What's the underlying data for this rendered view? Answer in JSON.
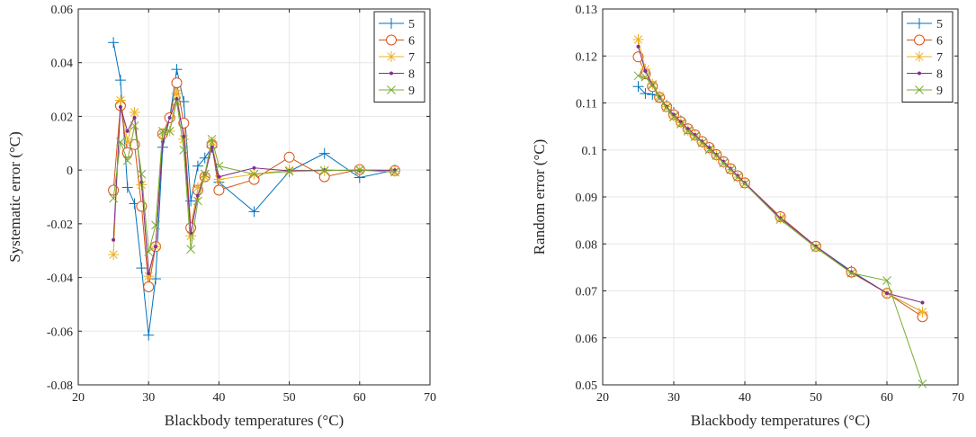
{
  "chart_data": [
    {
      "type": "line",
      "title": "",
      "xlabel": "Blackbody temperatures (°C)",
      "ylabel": "Systematic error (°C)",
      "xlim": [
        20,
        70
      ],
      "ylim": [
        -0.08,
        0.06
      ],
      "xticks": [
        "20",
        "30",
        "40",
        "50",
        "60",
        "70"
      ],
      "yticks": [
        "-0.08",
        "-0.06",
        "-0.04",
        "-0.02",
        "0",
        "0.02",
        "0.04",
        "0.06"
      ],
      "xtick_values": [
        20,
        30,
        40,
        50,
        60,
        70
      ],
      "ytick_values": [
        -0.08,
        -0.06,
        -0.04,
        -0.02,
        0,
        0.02,
        0.04,
        0.06
      ],
      "grid": true,
      "legend_position": "top-right",
      "series": [
        {
          "name": "5",
          "color": "#0072BD",
          "marker": "plus",
          "x": [
            25,
            26,
            27,
            28,
            29,
            30,
            31,
            32,
            33,
            34,
            35,
            36,
            37,
            38,
            39,
            40,
            45,
            50,
            55,
            60,
            65
          ],
          "y": [
            0.0475,
            0.0335,
            -0.0065,
            -0.0125,
            -0.0365,
            -0.0615,
            -0.0405,
            0.0085,
            0.0195,
            0.0375,
            0.0255,
            -0.0115,
            0.0015,
            0.0045,
            0.0085,
            -0.0045,
            -0.0155,
            -0.0005,
            0.0062,
            -0.0028,
            0.0
          ]
        },
        {
          "name": "6",
          "color": "#D95319",
          "marker": "circle",
          "x": [
            25,
            26,
            27,
            28,
            29,
            30,
            31,
            32,
            33,
            34,
            35,
            36,
            37,
            38,
            39,
            40,
            45,
            50,
            55,
            60,
            65
          ],
          "y": [
            -0.0075,
            0.024,
            0.0065,
            0.0095,
            -0.0135,
            -0.0435,
            -0.0285,
            0.0135,
            0.0195,
            0.0325,
            0.0175,
            -0.0215,
            -0.0075,
            -0.0025,
            0.0095,
            -0.0075,
            -0.0035,
            0.0048,
            -0.0025,
            0.0002,
            -0.0002
          ]
        },
        {
          "name": "7",
          "color": "#EDB120",
          "marker": "star",
          "x": [
            25,
            26,
            27,
            28,
            29,
            30,
            31,
            32,
            33,
            34,
            35,
            36,
            37,
            38,
            39,
            40,
            45,
            50,
            55,
            60,
            65
          ],
          "y": [
            -0.0315,
            0.026,
            0.0105,
            0.0215,
            -0.0055,
            -0.0395,
            -0.0285,
            0.0135,
            0.0145,
            0.0285,
            0.0115,
            -0.0245,
            -0.0065,
            -0.0025,
            0.0105,
            -0.0035,
            -0.0015,
            0.0,
            -0.0003,
            0.0002,
            -0.0005
          ]
        },
        {
          "name": "8",
          "color": "#7E2F8E",
          "marker": "dot",
          "x": [
            25,
            26,
            27,
            28,
            29,
            30,
            31,
            32,
            33,
            34,
            35,
            36,
            37,
            38,
            39,
            40,
            45,
            50,
            55,
            60,
            65
          ],
          "y": [
            -0.026,
            0.0235,
            0.0145,
            0.0195,
            -0.0045,
            -0.0385,
            -0.0285,
            0.0105,
            0.0195,
            0.0265,
            0.0125,
            -0.0235,
            -0.0095,
            -0.0015,
            0.0085,
            -0.0025,
            0.0008,
            -0.0003,
            0.0,
            -0.0002,
            0.0
          ]
        },
        {
          "name": "9",
          "color": "#77AC30",
          "marker": "x",
          "x": [
            25,
            26,
            27,
            28,
            29,
            30,
            31,
            32,
            33,
            34,
            35,
            36,
            37,
            38,
            39,
            40,
            45,
            50,
            55,
            60,
            65
          ],
          "y": [
            -0.0105,
            0.0105,
            0.0035,
            0.0165,
            -0.0015,
            -0.0305,
            -0.0205,
            0.0145,
            0.0145,
            0.0255,
            0.0075,
            -0.0295,
            -0.0115,
            -0.0015,
            0.0115,
            0.0015,
            -0.0015,
            -0.0005,
            -0.0002,
            0.0,
            -0.0008
          ]
        }
      ]
    },
    {
      "type": "line",
      "title": "",
      "xlabel": "Blackbody temperatures (°C)",
      "ylabel": "Random error (°C)",
      "xlim": [
        20,
        70
      ],
      "ylim": [
        0.05,
        0.13
      ],
      "xticks": [
        "20",
        "30",
        "40",
        "50",
        "60",
        "70"
      ],
      "yticks": [
        "0.05",
        "0.06",
        "0.07",
        "0.08",
        "0.09",
        "0.1",
        "0.11",
        "0.12",
        "0.13"
      ],
      "xtick_values": [
        20,
        30,
        40,
        50,
        60,
        70
      ],
      "ytick_values": [
        0.05,
        0.06,
        0.07,
        0.08,
        0.09,
        0.1,
        0.11,
        0.12,
        0.13
      ],
      "grid": true,
      "legend_position": "top-right",
      "series": [
        {
          "name": "5",
          "color": "#0072BD",
          "marker": "plus",
          "x": [
            25,
            26,
            27,
            28,
            29,
            30,
            31,
            32,
            33,
            34,
            35,
            36,
            37,
            38,
            39,
            40,
            45,
            50,
            55,
            60,
            65
          ],
          "y": [
            0.1135,
            0.112,
            0.1118,
            0.1112,
            0.1095,
            0.108,
            0.1062,
            0.1045,
            0.1032,
            0.1018,
            0.1005,
            0.099,
            0.0975,
            0.096,
            0.0945,
            0.093,
            0.0855,
            0.0795,
            0.0742,
            0.0695,
            0.0655
          ]
        },
        {
          "name": "6",
          "color": "#D95319",
          "marker": "circle",
          "x": [
            25,
            26,
            27,
            28,
            29,
            30,
            31,
            32,
            33,
            34,
            35,
            36,
            37,
            38,
            39,
            40,
            45,
            50,
            55,
            60,
            65
          ],
          "y": [
            0.1198,
            0.1162,
            0.1135,
            0.1112,
            0.1092,
            0.1075,
            0.106,
            0.1045,
            0.1032,
            0.1018,
            0.1005,
            0.099,
            0.0975,
            0.096,
            0.0945,
            0.093,
            0.0858,
            0.0795,
            0.074,
            0.0695,
            0.0645
          ]
        },
        {
          "name": "7",
          "color": "#EDB120",
          "marker": "star",
          "x": [
            25,
            26,
            27,
            28,
            29,
            30,
            31,
            32,
            33,
            34,
            35,
            36,
            37,
            38,
            39,
            40,
            45,
            50,
            55,
            60,
            65
          ],
          "y": [
            0.1235,
            0.1172,
            0.114,
            0.1115,
            0.1092,
            0.1072,
            0.1058,
            0.1042,
            0.103,
            0.1015,
            0.1002,
            0.0988,
            0.0972,
            0.0958,
            0.0942,
            0.0928,
            0.0855,
            0.0793,
            0.0738,
            0.0695,
            0.0655
          ]
        },
        {
          "name": "8",
          "color": "#7E2F8E",
          "marker": "dot",
          "x": [
            25,
            26,
            27,
            28,
            29,
            30,
            31,
            32,
            33,
            34,
            35,
            36,
            37,
            38,
            39,
            40,
            45,
            50,
            55,
            60,
            65
          ],
          "y": [
            0.122,
            0.1168,
            0.1138,
            0.1112,
            0.1092,
            0.1075,
            0.106,
            0.1045,
            0.1032,
            0.1018,
            0.1005,
            0.099,
            0.0975,
            0.096,
            0.0945,
            0.093,
            0.0855,
            0.0795,
            0.074,
            0.0695,
            0.0675
          ]
        },
        {
          "name": "9",
          "color": "#77AC30",
          "marker": "x",
          "x": [
            25,
            26,
            27,
            28,
            29,
            30,
            31,
            32,
            33,
            34,
            35,
            36,
            37,
            38,
            39,
            40,
            45,
            50,
            55,
            60,
            65
          ],
          "y": [
            0.1158,
            0.1155,
            0.1138,
            0.111,
            0.109,
            0.107,
            0.1055,
            0.104,
            0.1028,
            0.1015,
            0.1,
            0.0988,
            0.0972,
            0.0958,
            0.0942,
            0.0928,
            0.0852,
            0.0792,
            0.0738,
            0.0722,
            0.0502
          ]
        }
      ]
    }
  ]
}
